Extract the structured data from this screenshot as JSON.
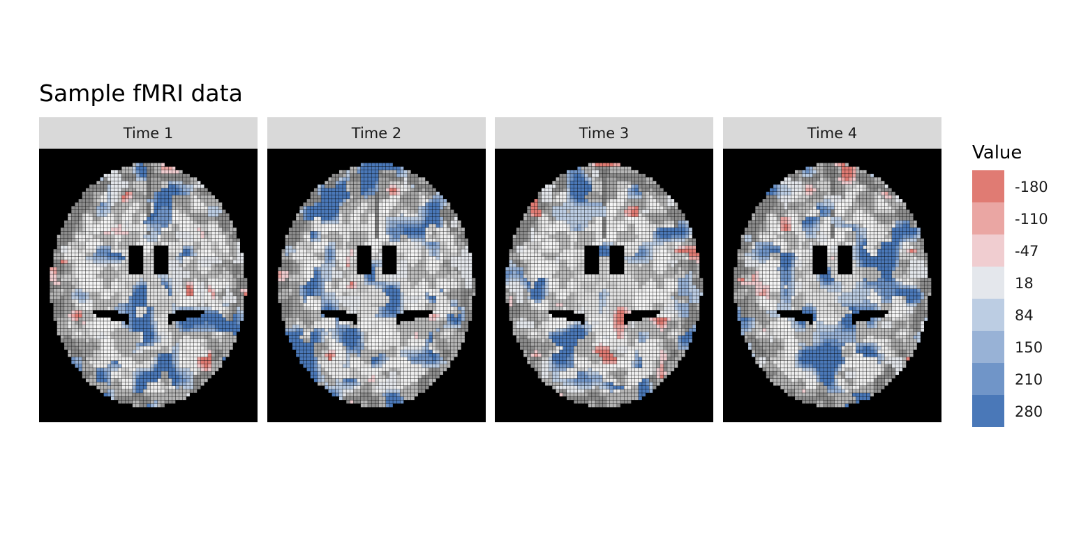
{
  "chart_data": {
    "type": "heatmap",
    "title": "Sample fMRI data",
    "facets": [
      "Time 1",
      "Time 2",
      "Time 3",
      "Time 4"
    ],
    "legend": {
      "title": "Value",
      "position": "right",
      "breaks": [
        -180,
        -110,
        -47,
        18,
        84,
        150,
        210,
        280
      ],
      "labels": [
        "-180",
        "-110",
        "-47",
        "18",
        "84",
        "150",
        "210",
        "280"
      ],
      "colors": [
        "#e07b73",
        "#eaa6a3",
        "#f0cdd0",
        "#e4e7ec",
        "#bccde3",
        "#98b2d6",
        "#7095c8",
        "#4a78b8"
      ]
    },
    "grid": false,
    "background_colors": {
      "panel": "#000000",
      "strip": "#d9d9d9"
    }
  }
}
